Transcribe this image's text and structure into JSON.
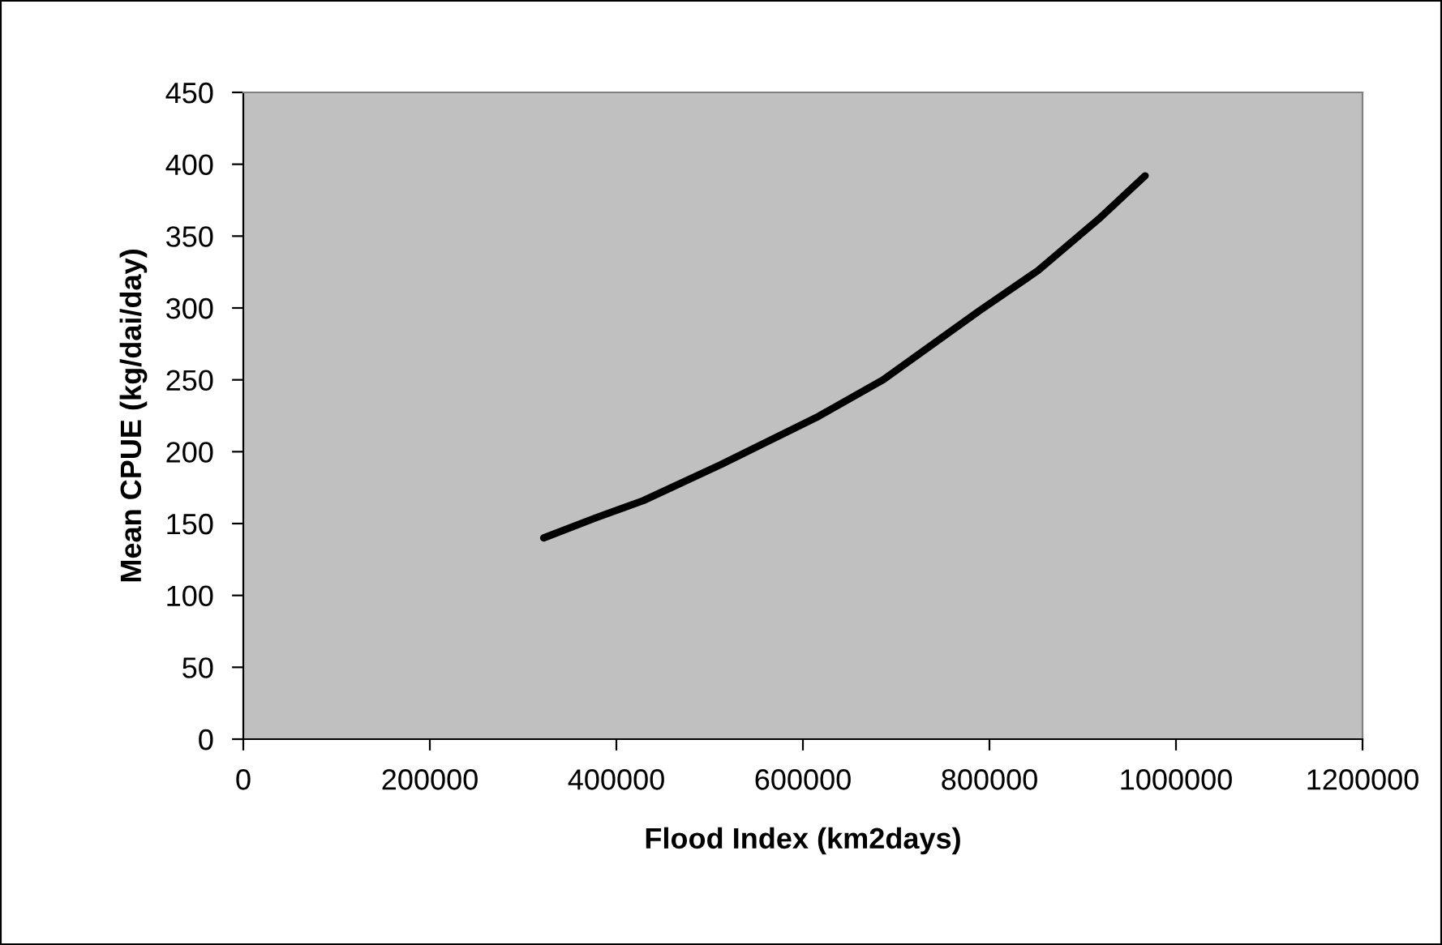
{
  "chart_data": {
    "type": "line",
    "xlabel": "Flood Index (km2days)",
    "ylabel": "Mean CPUE (kg/dai/day)",
    "x": [
      322000,
      378000,
      429000,
      512000,
      615000,
      686000,
      789000,
      852000,
      919000,
      967000
    ],
    "series": [
      {
        "color": "#000000",
        "values": [
          140,
          154,
          166,
          191,
          224,
          250,
          298,
          326,
          363,
          392
        ]
      }
    ],
    "xlim": [
      0,
      1200000
    ],
    "xticks": [
      0,
      200000,
      400000,
      600000,
      800000,
      1000000,
      1200000
    ],
    "ylim": [
      0,
      450
    ],
    "yticks": [
      0,
      50,
      100,
      150,
      200,
      250,
      300,
      350,
      400,
      450
    ],
    "grid": false,
    "legend": false,
    "marker": "none",
    "line_style": "solid"
  }
}
